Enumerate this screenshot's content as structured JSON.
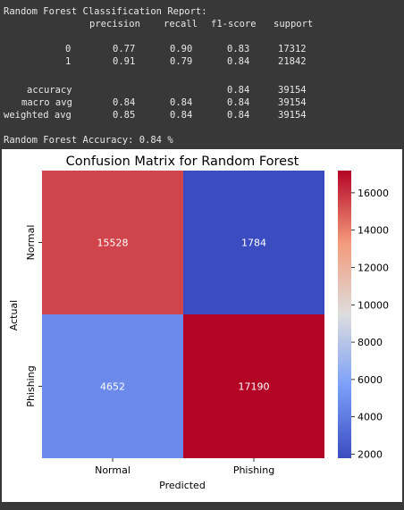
{
  "report": {
    "title": "Random Forest Classification Report:",
    "headers": [
      "precision",
      "recall",
      "f1-score",
      "support"
    ],
    "rows": [
      {
        "label": "0",
        "precision": "0.77",
        "recall": "0.90",
        "f1": "0.83",
        "support": "17312"
      },
      {
        "label": "1",
        "precision": "0.91",
        "recall": "0.79",
        "f1": "0.84",
        "support": "21842"
      },
      {
        "label": "accuracy",
        "precision": "",
        "recall": "",
        "f1": "0.84",
        "support": "39154"
      },
      {
        "label": "macro avg",
        "precision": "0.84",
        "recall": "0.84",
        "f1": "0.84",
        "support": "39154"
      },
      {
        "label": "weighted avg",
        "precision": "0.85",
        "recall": "0.84",
        "f1": "0.84",
        "support": "39154"
      }
    ],
    "accuracy_line": "Random Forest Accuracy: 0.84 %"
  },
  "chart_data": {
    "type": "heatmap",
    "title": "Confusion Matrix for Random Forest",
    "xlabel": "Predicted",
    "ylabel": "Actual",
    "x_categories": [
      "Normal",
      "Phishing"
    ],
    "y_categories": [
      "Normal",
      "Phishing"
    ],
    "values": [
      [
        15528,
        1784
      ],
      [
        4652,
        17190
      ]
    ],
    "colormap": "coolwarm",
    "colorbar": {
      "min": 1784,
      "max": 17190,
      "ticks": [
        2000,
        4000,
        6000,
        8000,
        10000,
        12000,
        14000,
        16000
      ]
    },
    "cell_text_color": "#ffffff",
    "colors": {
      "low": "#3b4cc0",
      "mid": "#dddddd",
      "high": "#b40426"
    }
  }
}
